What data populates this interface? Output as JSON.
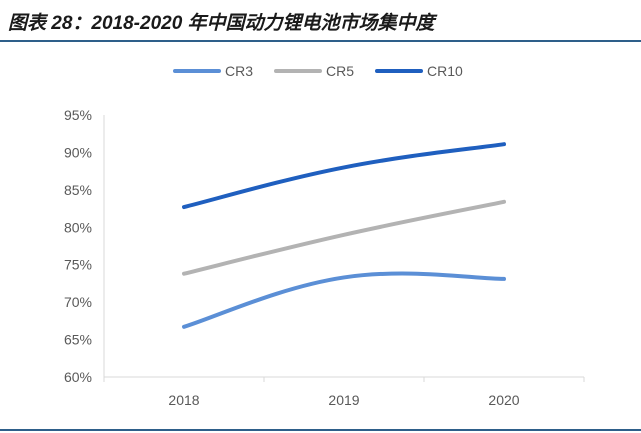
{
  "header": {
    "title": "图表 28：2018-2020 年中国动力锂电池市场集中度"
  },
  "chart_data": {
    "type": "line",
    "x": [
      "2018",
      "2019",
      "2020"
    ],
    "ylim": [
      60,
      95
    ],
    "yticks": [
      "60%",
      "65%",
      "70%",
      "75%",
      "80%",
      "85%",
      "90%",
      "95%"
    ],
    "ytick_values": [
      60,
      65,
      70,
      75,
      80,
      85,
      90,
      95
    ],
    "legend_position": "top-center",
    "grid": false,
    "series": [
      {
        "name": "CR3",
        "values": [
          66.7,
          73.3,
          73.1
        ],
        "color": "#5b8fd6"
      },
      {
        "name": "CR5",
        "values": [
          73.8,
          79.0,
          83.4
        ],
        "color": "#b3b3b3"
      },
      {
        "name": "CR10",
        "values": [
          82.7,
          88.0,
          91.1
        ],
        "color": "#1f5fbf"
      }
    ]
  }
}
